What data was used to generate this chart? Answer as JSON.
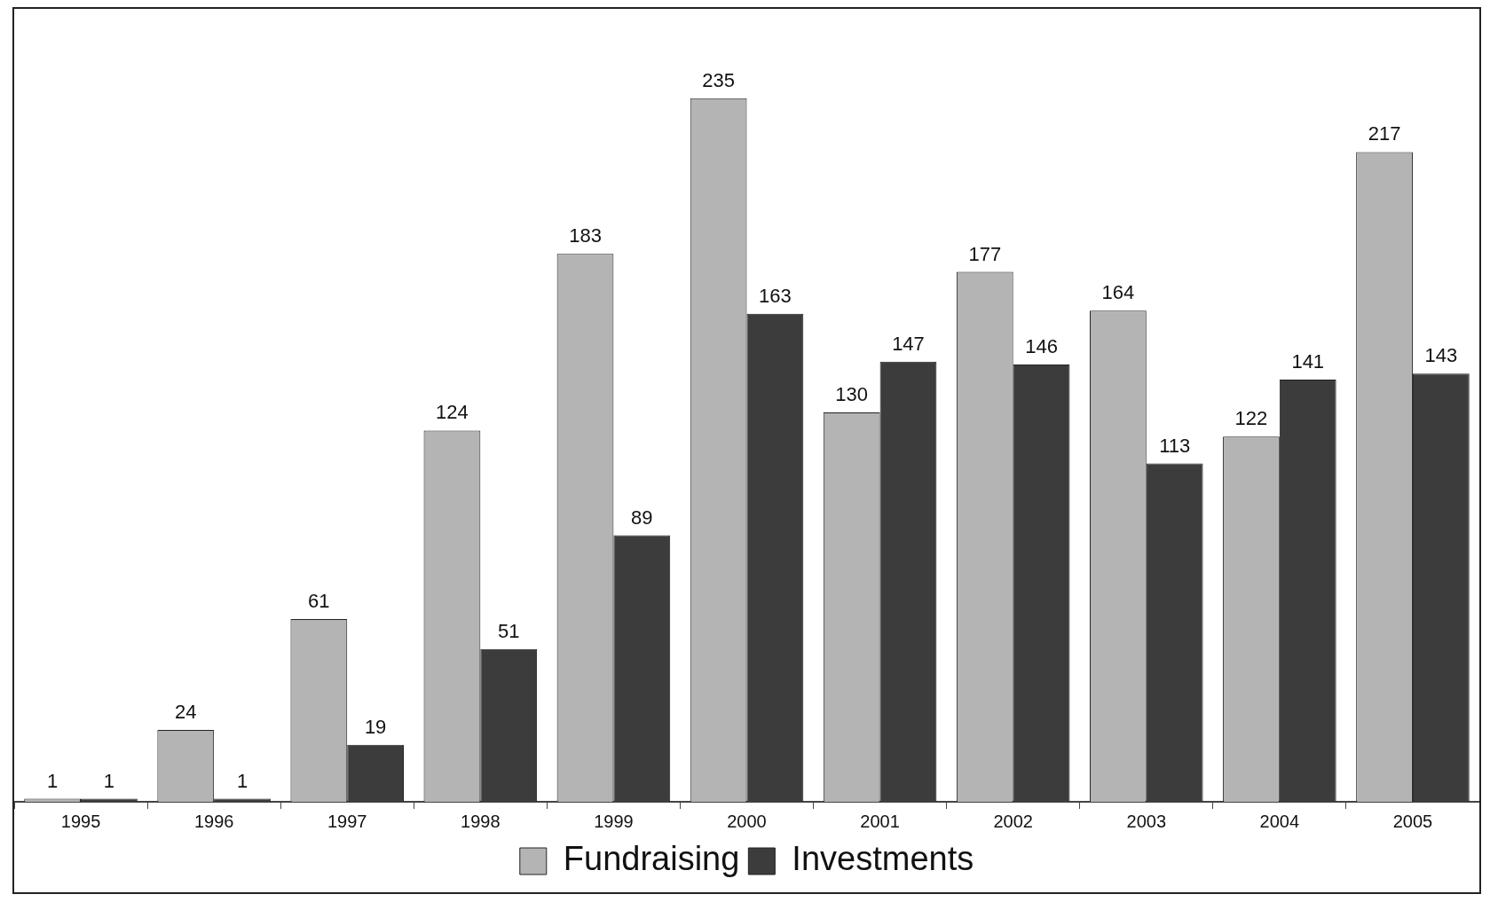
{
  "chart_data": {
    "type": "bar",
    "categories": [
      "1995",
      "1996",
      "1997",
      "1998",
      "1999",
      "2000",
      "2001",
      "2002",
      "2003",
      "2004",
      "2005"
    ],
    "series": [
      {
        "name": "Fundraising",
        "color": "#b4b4b4",
        "values": [
          1,
          24,
          61,
          124,
          183,
          235,
          130,
          177,
          164,
          122,
          217
        ]
      },
      {
        "name": "Investments",
        "color": "#3c3c3c",
        "values": [
          1,
          1,
          19,
          51,
          89,
          163,
          147,
          146,
          113,
          141,
          143
        ]
      }
    ],
    "data_labels": true,
    "legend": "bottom",
    "tick_labels": "x",
    "grid": false
  }
}
